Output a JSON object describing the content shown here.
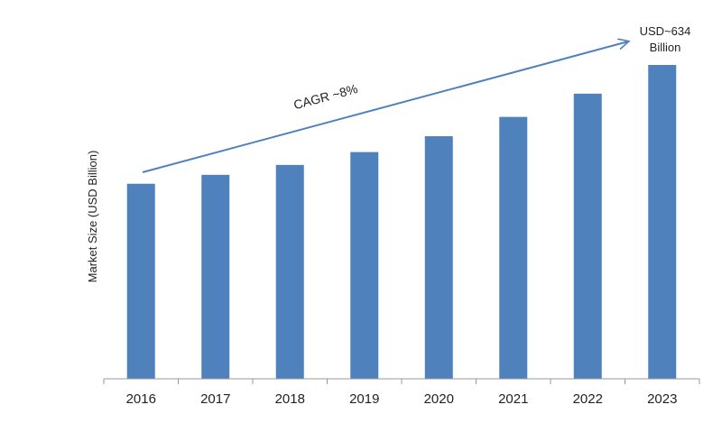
{
  "chart_data": {
    "type": "bar",
    "title": "",
    "xlabel": "",
    "ylabel": "Market Size (USD Billion)",
    "categories": [
      "2016",
      "2017",
      "2018",
      "2019",
      "2020",
      "2021",
      "2022",
      "2023"
    ],
    "values": [
      394,
      412,
      432,
      458,
      490,
      529,
      576,
      634
    ],
    "ylim": [
      0,
      634
    ],
    "grid": false,
    "legend": "none",
    "bar_color": "#4f81bd",
    "annotations": {
      "cagr": "CAGR ~8%",
      "end_label_line1": "USD~634",
      "end_label_line2": "Billion"
    },
    "arrow_color": "#4f81bd"
  }
}
